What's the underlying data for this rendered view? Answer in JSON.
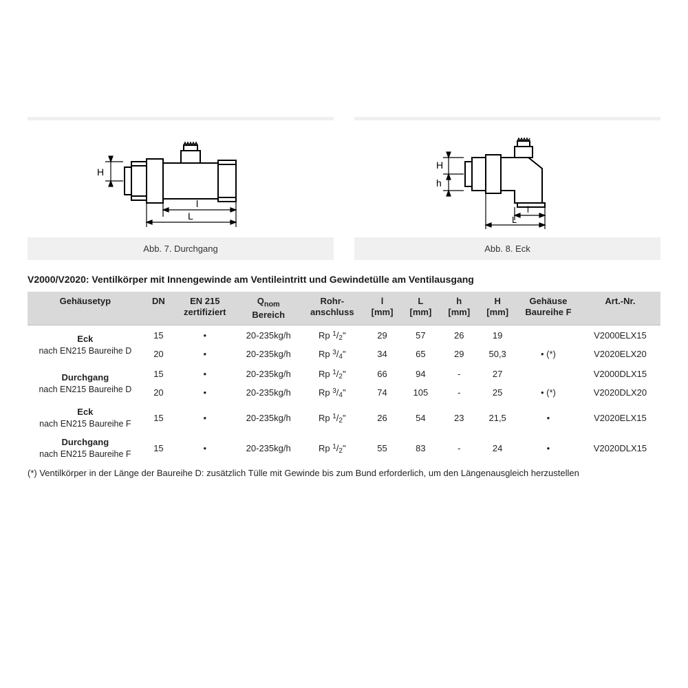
{
  "figures": {
    "left_caption": "Abb. 7. Durchgang",
    "right_caption": "Abb. 8. Eck"
  },
  "section_title": "V2000/V2020: Ventilkörper mit Innengewinde am Ventileintritt und Gewindetülle am Ventilausgang",
  "table": {
    "headers": {
      "c0": "Gehäusetyp",
      "c1": "DN",
      "c2a": "EN 215",
      "c2b": "zertifiziert",
      "c3a": "Qnom",
      "c3b": "Bereich",
      "c4a": "Rohr-",
      "c4b": "anschluss",
      "c5a": "l",
      "c5b": "[mm]",
      "c6a": "L",
      "c6b": "[mm]",
      "c7a": "h",
      "c7b": "[mm]",
      "c8a": "H",
      "c8b": "[mm]",
      "c9a": "Gehäuse",
      "c9b": "Baureihe F",
      "c10": "Art.-Nr."
    },
    "rows": [
      {
        "group": "Eck",
        "sub": "nach EN215 Baureihe D",
        "dn": "15",
        "cert": "•",
        "q": "20-235kg/h",
        "conn": "Rp 1/2\"",
        "l": "29",
        "L": "57",
        "h": "26",
        "H": "19",
        "gf": "",
        "art": "V2000ELX15"
      },
      {
        "group": "",
        "sub": "",
        "dn": "20",
        "cert": "•",
        "q": "20-235kg/h",
        "conn": "Rp 3/4\"",
        "l": "34",
        "L": "65",
        "h": "29",
        "H": "50,3",
        "gf": "• (*)",
        "art": "V2020ELX20"
      },
      {
        "group": "Durchgang",
        "sub": "nach EN215 Baureihe D",
        "dn": "15",
        "cert": "•",
        "q": "20-235kg/h",
        "conn": "Rp 1/2\"",
        "l": "66",
        "L": "94",
        "h": "-",
        "H": "27",
        "gf": "",
        "art": "V2000DLX15"
      },
      {
        "group": "",
        "sub": "",
        "dn": "20",
        "cert": "•",
        "q": "20-235kg/h",
        "conn": "Rp 3/4\"",
        "l": "74",
        "L": "105",
        "h": "-",
        "H": "25",
        "gf": "• (*)",
        "art": "V2020DLX20"
      },
      {
        "group": "Eck",
        "sub": "nach EN215 Baureihe F",
        "dn": "15",
        "cert": "•",
        "q": "20-235kg/h",
        "conn": "Rp 1/2\"",
        "l": "26",
        "L": "54",
        "h": "23",
        "H": "21,5",
        "gf": "•",
        "art": "V2020ELX15"
      },
      {
        "group": "Durchgang",
        "sub": "nach EN215 Baureihe F",
        "dn": "15",
        "cert": "•",
        "q": "20-235kg/h",
        "conn": "Rp 1/2\"",
        "l": "55",
        "L": "83",
        "h": "-",
        "H": "24",
        "gf": "•",
        "art": "V2020DLX15"
      }
    ]
  },
  "footnote": "(*) Ventilkörper in der Länge der Baureihe D: zusätzlich Tülle mit Gewinde bis zum Bund erforderlich, um den Längenausgleich herzustellen",
  "colors": {
    "header_bg": "#d9d9d9",
    "figure_bg": "#f0f0f0",
    "stroke": "#000000",
    "text": "#222222"
  },
  "diagram_labels": {
    "H": "H",
    "h": "h",
    "l": "l",
    "L": "L"
  }
}
